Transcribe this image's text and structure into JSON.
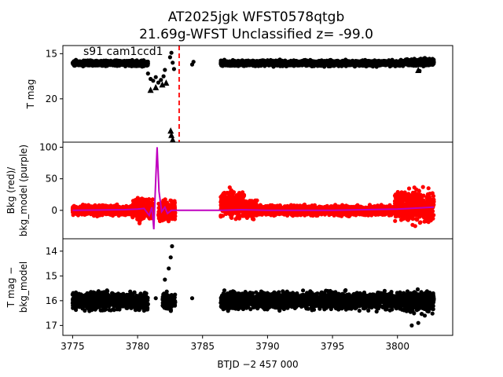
{
  "title_line1": "AT2025jgk  WFST0578qtgb",
  "title_line2": "21.69g-WFST Unclassified z= -99.0",
  "x_label": "BTJD −2 457 000",
  "colors": {
    "points": "#000000",
    "background": "#ff0000",
    "bkg_model": "#bf00bf",
    "marker_line": "#ff0000"
  },
  "chart_data": [
    {
      "type": "scatter",
      "panel": "top",
      "ylabel": "T mag",
      "annotation": "s91 cam1ccd1",
      "y_inverted": true,
      "xlim": [
        3774.25,
        3804.25
      ],
      "ylim": [
        24.8,
        14.1
      ],
      "yticks": [
        15,
        20
      ],
      "vertical_marker_x": 3783.2,
      "series": [
        {
          "segments": [
            [
              3775.0,
              3779.6,
              16.05,
              0.2
            ],
            [
              3779.6,
              3780.8,
              16.1,
              0.2
            ],
            [
              3786.4,
              3800.5,
              16.05,
              0.2
            ],
            [
              3800.5,
              3802.8,
              15.95,
              0.25
            ]
          ]
        },
        {
          "points": [
            [
              3780.8,
              17.2
            ],
            [
              3781.0,
              17.8
            ],
            [
              3781.2,
              18.0
            ],
            [
              3781.4,
              17.6
            ],
            [
              3781.6,
              18.2
            ],
            [
              3781.8,
              17.9
            ],
            [
              3782.0,
              17.5
            ],
            [
              3782.1,
              16.8
            ],
            [
              3782.5,
              15.4
            ],
            [
              3782.6,
              14.9
            ],
            [
              3782.7,
              16.0
            ],
            [
              3782.8,
              16.7
            ],
            [
              3784.2,
              16.2
            ],
            [
              3784.3,
              15.9
            ],
            [
              3802.0,
              16.4
            ],
            [
              3801.7,
              16.9
            ]
          ]
        }
      ],
      "upper_limits": [
        [
          3781.0,
          19.0
        ],
        [
          3781.4,
          18.7
        ],
        [
          3781.9,
          18.4
        ],
        [
          3782.2,
          18.2
        ],
        [
          3782.55,
          23.5
        ],
        [
          3782.6,
          24.0
        ],
        [
          3782.7,
          24.5
        ],
        [
          3801.6,
          16.8
        ]
      ]
    },
    {
      "type": "scatter",
      "panel": "middle",
      "ylabel": "Bkg (red)/ bkg_model (purple)",
      "xlim": [
        3774.25,
        3804.25
      ],
      "ylim": [
        -45,
        108
      ],
      "yticks": [
        0,
        50,
        100
      ],
      "series": [
        {
          "name": "Bkg",
          "segments": [
            [
              3775.0,
              3779.6,
              0,
              5
            ],
            [
              3779.6,
              3781.2,
              3,
              12
            ],
            [
              3781.6,
              3782.9,
              -1,
              10
            ],
            [
              3786.4,
              3788.2,
              10,
              14
            ],
            [
              3788.2,
              3789.2,
              2,
              10
            ],
            [
              3789.2,
              3799.8,
              0,
              5
            ],
            [
              3799.8,
              3802.8,
              6,
              17
            ]
          ]
        },
        {
          "name": "bkg_model",
          "points": [
            [
              3775.0,
              0
            ],
            [
              3779.0,
              1
            ],
            [
              3780.0,
              2
            ],
            [
              3780.5,
              3
            ],
            [
              3780.9,
              -8
            ],
            [
              3781.1,
              5
            ],
            [
              3781.25,
              -30
            ],
            [
              3781.4,
              50
            ],
            [
              3781.5,
              100
            ],
            [
              3781.65,
              30
            ],
            [
              3781.85,
              -2
            ],
            [
              3782.1,
              5
            ],
            [
              3782.3,
              -5
            ],
            [
              3782.6,
              0
            ],
            [
              3786.5,
              0
            ],
            [
              3788.0,
              1
            ],
            [
              3790.0,
              0
            ],
            [
              3795.0,
              0
            ],
            [
              3800.0,
              2
            ],
            [
              3802.8,
              5
            ]
          ]
        }
      ]
    },
    {
      "type": "scatter",
      "panel": "bottom",
      "ylabel": "T mag − bkg_model",
      "y_inverted": true,
      "xlim": [
        3774.25,
        3804.25
      ],
      "ylim": [
        17.4,
        13.5
      ],
      "yticks": [
        14,
        15,
        16,
        17
      ],
      "series": [
        {
          "segments": [
            [
              3775.0,
              3779.6,
              16.0,
              0.22
            ],
            [
              3779.6,
              3780.8,
              16.05,
              0.22
            ],
            [
              3781.9,
              3782.9,
              16.0,
              0.22
            ],
            [
              3786.4,
              3800.5,
              16.0,
              0.22
            ],
            [
              3800.5,
              3802.8,
              16.05,
              0.28
            ]
          ]
        },
        {
          "points": [
            [
              3780.5,
              16.4
            ],
            [
              3781.4,
              15.9
            ],
            [
              3782.1,
              15.15
            ],
            [
              3782.4,
              14.7
            ],
            [
              3782.55,
              14.25
            ],
            [
              3782.65,
              13.8
            ],
            [
              3782.0,
              16.2
            ],
            [
              3784.2,
              15.9
            ],
            [
              3801.6,
              16.9
            ],
            [
              3801.1,
              17.0
            ],
            [
              3802.1,
              16.6
            ],
            [
              3800.8,
              16.4
            ]
          ]
        }
      ]
    }
  ]
}
